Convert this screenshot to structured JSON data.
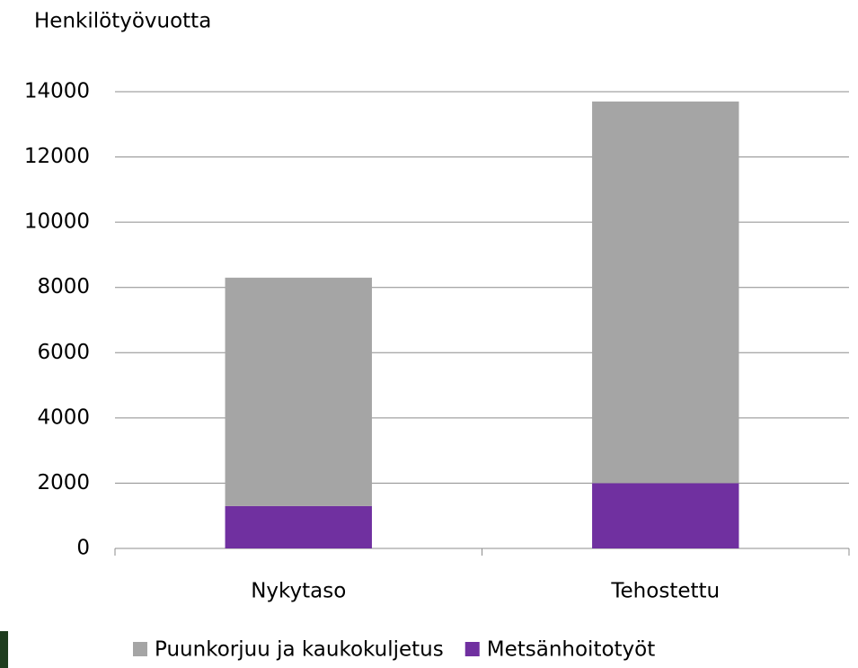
{
  "chart_data": {
    "type": "stacked_bar",
    "y_label": "Henkilötyövuotta",
    "categories": [
      "Nykytaso",
      "Tehostettu"
    ],
    "series": [
      {
        "name": "Puunkorjuu ja kaukokuljetus",
        "color": "#a5a5a5",
        "values": [
          7000,
          11700
        ]
      },
      {
        "name": "Metsänhoitotyöt",
        "color": "#7030a0",
        "values": [
          1300,
          2000
        ]
      }
    ],
    "ylim": [
      0,
      14000
    ],
    "yticks": [
      0,
      2000,
      4000,
      6000,
      8000,
      10000,
      12000,
      14000
    ],
    "grid": true,
    "legend": "bottom"
  }
}
